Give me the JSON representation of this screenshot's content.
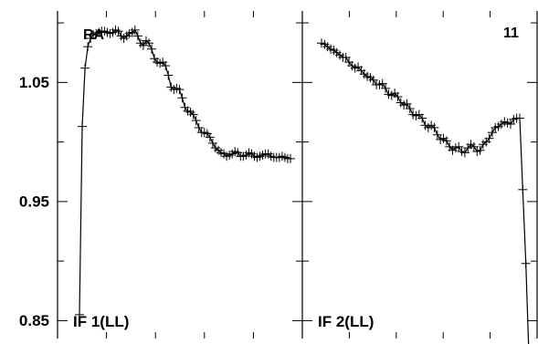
{
  "chart_data": {
    "type": "line",
    "ylim": [
      0.835,
      1.11
    ],
    "y_ticks": [
      0.85,
      0.95,
      1.05
    ],
    "y_tick_labels": [
      "0.85",
      "0.95",
      "1.05"
    ],
    "top_left_text": "RA",
    "top_right_text": "11",
    "grid": false,
    "panels": [
      {
        "label": "IF 1(LL)",
        "series": [
          {
            "values": [
              0.855,
              1.013,
              1.062,
              1.08,
              1.087,
              1.09,
              1.091,
              1.092,
              1.093,
              1.093,
              1.092,
              1.091,
              1.092,
              1.094,
              1.093,
              1.089,
              1.087,
              1.089,
              1.091,
              1.092,
              1.094,
              1.089,
              1.083,
              1.081,
              1.085,
              1.083,
              1.078,
              1.07,
              1.067,
              1.066,
              1.067,
              1.064,
              1.056,
              1.046,
              1.044,
              1.045,
              1.044,
              1.037,
              1.029,
              1.026,
              1.025,
              1.023,
              1.018,
              1.012,
              1.008,
              1.008,
              1.007,
              1.004,
              0.999,
              0.995,
              0.993,
              0.991,
              0.99,
              0.988,
              0.989,
              0.99,
              0.992,
              0.991,
              0.988,
              0.988,
              0.989,
              0.991,
              0.99,
              0.988,
              0.987,
              0.988,
              0.989,
              0.99,
              0.99,
              0.988,
              0.987,
              0.987,
              0.987,
              0.988,
              0.987,
              0.986,
              0.986
            ]
          }
        ]
      },
      {
        "label": "IF 2(LL)",
        "series": [
          {
            "values": [
              1.083,
              1.082,
              1.08,
              1.078,
              1.077,
              1.075,
              1.073,
              1.071,
              1.071,
              1.067,
              1.064,
              1.062,
              1.063,
              1.06,
              1.057,
              1.055,
              1.054,
              1.052,
              1.048,
              1.048,
              1.049,
              1.045,
              1.04,
              1.039,
              1.041,
              1.038,
              1.033,
              1.031,
              1.032,
              1.028,
              1.023,
              1.022,
              1.023,
              1.02,
              1.014,
              1.012,
              1.014,
              1.012,
              1.006,
              1.002,
              1.003,
              1.001,
              0.996,
              0.993,
              0.995,
              0.996,
              0.992,
              0.991,
              0.995,
              0.998,
              0.996,
              0.992,
              0.993,
              0.998,
              1.0,
              1.003,
              1.008,
              1.012,
              1.013,
              1.015,
              1.017,
              1.016,
              1.015,
              1.019,
              1.02,
              1.02,
              0.96,
              0.898,
              0.822
            ]
          }
        ]
      }
    ]
  }
}
